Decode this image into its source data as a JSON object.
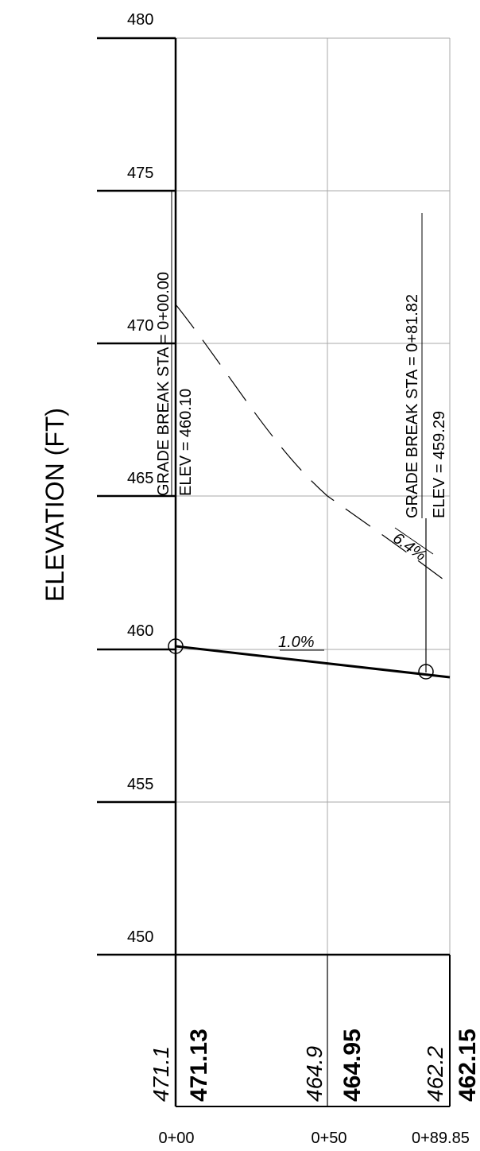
{
  "y_axis": {
    "title": "ELEVATION (FT)",
    "ticks": [
      480,
      475,
      470,
      465,
      460,
      455,
      450
    ]
  },
  "x_axis": {
    "ticks": [
      "0+00",
      "0+50",
      "0+89.85"
    ]
  },
  "grade_breaks": [
    {
      "label": "GRADE BREAK STA = 0+00.00",
      "elev_label": "ELEV =  460.10",
      "station": 0.0,
      "elev": 460.1
    },
    {
      "label": "GRADE BREAK STA = 0+81.82",
      "elev_label": "ELEV =  459.29",
      "station": 81.82,
      "elev": 459.29
    }
  ],
  "slopes": {
    "proposed": "1.0%",
    "existing": "6.4%"
  },
  "profile_table": [
    {
      "existing": "471.1",
      "proposed": "471.13"
    },
    {
      "existing": "464.9",
      "proposed": "464.95"
    },
    {
      "existing": "462.2",
      "proposed": "462.15"
    }
  ]
}
